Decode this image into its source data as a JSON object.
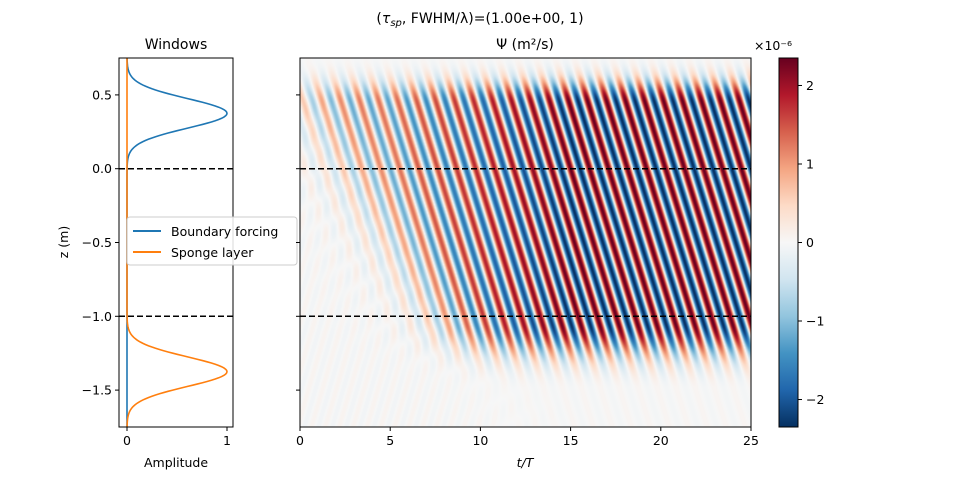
{
  "figure": {
    "suptitle": "(τ_sp, FWHM/λ)=(1.00e+00, 1)"
  },
  "chart_data": [
    {
      "type": "line",
      "title": "Windows",
      "xlabel": "Amplitude",
      "ylabel": "z (m)",
      "xlim": [
        -0.08,
        1.06
      ],
      "ylim": [
        -1.75,
        0.75
      ],
      "x_ticks": [
        0,
        1
      ],
      "y_ticks": [
        0.5,
        0.0,
        -0.5,
        -1.0,
        -1.5
      ],
      "grid": false,
      "legend_placement": "center-right",
      "hlines": [
        0.0,
        -1.0
      ],
      "series": [
        {
          "name": "Boundary forcing",
          "color": "#1f77b4",
          "shape": "gaussian",
          "center": 0.375,
          "sigma": 0.1,
          "amplitude": 1.0,
          "z_range": [
            -1.75,
            0.75
          ]
        },
        {
          "name": "Sponge layer",
          "color": "#ff7f0e",
          "shape": "gaussian",
          "center": -1.375,
          "sigma": 0.1,
          "amplitude": 1.0,
          "z_range": [
            -1.75,
            0.75
          ]
        }
      ]
    },
    {
      "type": "heatmap",
      "title": "Ψ (m²/s)",
      "xlabel": "t/T",
      "ylabel": "",
      "xlim": [
        0,
        25
      ],
      "ylim": [
        -1.75,
        0.75
      ],
      "x_ticks": [
        0,
        5,
        10,
        15,
        20,
        25
      ],
      "y_ticks": [
        0.5,
        0.0,
        -0.5,
        -1.0,
        -1.5
      ],
      "hlines": [
        0.0,
        -1.0
      ],
      "colormap": "RdBu_r",
      "colorbar": {
        "exponent_label": "×10⁻⁶",
        "vmin": -2.35,
        "vmax": 2.35,
        "ticks": [
          2,
          1,
          0,
          -1,
          -2
        ],
        "tick_labels": [
          "2",
          "1",
          "0",
          "−1",
          "−2"
        ]
      }
    }
  ]
}
